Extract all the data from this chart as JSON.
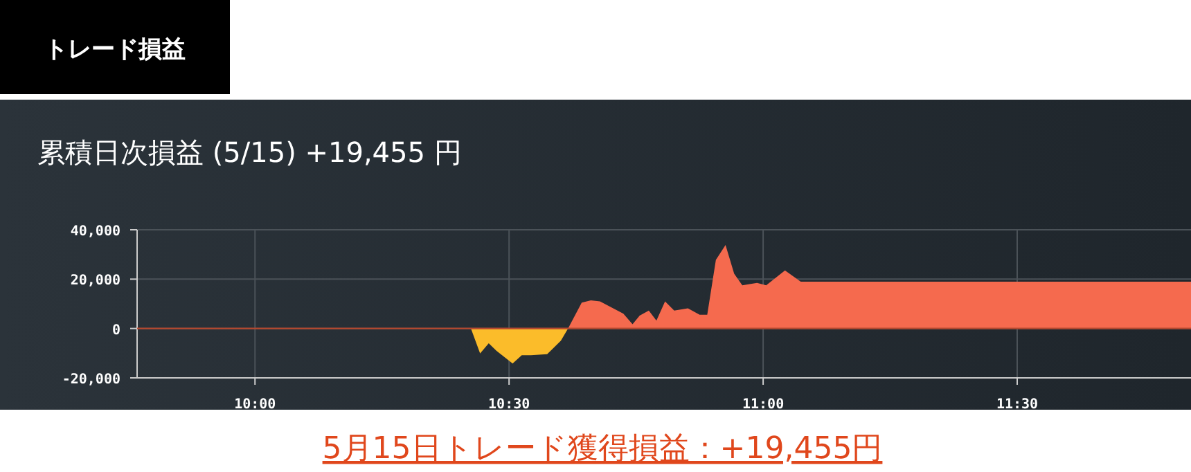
{
  "chart_data": {
    "type": "area",
    "title": "トレード損益",
    "subtitle": "累積日次損益 (5/15) +19,455 円",
    "annotations": [
      "5月15日トレード獲得損益：+19,455円"
    ],
    "series": [
      {
        "color": "#fbbc2a",
        "x": [
          10.425,
          10.443,
          10.46,
          10.475,
          10.507,
          10.525,
          10.543,
          10.575,
          10.602,
          10.616
        ],
        "values": [
          0,
          -10100,
          -6000,
          -9000,
          -14200,
          -10800,
          -10800,
          -10400,
          -4900,
          0
        ]
      },
      {
        "color": "#f56a4e",
        "x": [
          10.616,
          10.643,
          10.661,
          10.679,
          10.725,
          10.743,
          10.757,
          10.775,
          10.79,
          10.807,
          10.825,
          10.852,
          10.875,
          10.89,
          10.907,
          10.926,
          10.943,
          10.959,
          10.988,
          11.006,
          11.043,
          11.074,
          11.842
        ],
        "values": [
          0,
          10500,
          11400,
          11000,
          6000,
          1700,
          5200,
          7300,
          3200,
          11000,
          7300,
          8200,
          5600,
          5600,
          27800,
          33800,
          22200,
          17500,
          18500,
          17500,
          23500,
          19000,
          19000
        ]
      }
    ],
    "xlim": [
      9.768,
      11.842
    ],
    "xticks": [
      {
        "value": 10,
        "label": "10:00"
      },
      {
        "value": 10.5,
        "label": "10:30"
      },
      {
        "value": 11,
        "label": "11:00"
      },
      {
        "value": 11.5,
        "label": "11:30"
      }
    ],
    "ylim": [
      -20000,
      40000
    ],
    "yticks": [
      {
        "value": -20000,
        "label": "-20,000"
      },
      {
        "value": 0,
        "label": "0"
      },
      {
        "value": 20000,
        "label": "20,000"
      },
      {
        "value": 40000,
        "label": "40,000"
      }
    ],
    "ref_lines": [
      {
        "axis": "y",
        "value": 0,
        "color": "#b5482f"
      }
    ],
    "grid": true
  }
}
